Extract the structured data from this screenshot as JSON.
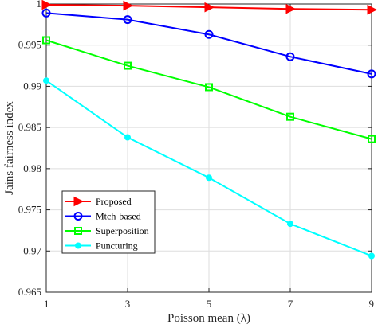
{
  "chart_data": {
    "type": "line",
    "xlabel": "Poisson mean (λ)",
    "ylabel": "Jains fairness index",
    "x": [
      1,
      3,
      5,
      7,
      9
    ],
    "x_ticks": [
      "1",
      "3",
      "5",
      "7",
      "9"
    ],
    "y_ticks": [
      "0.965",
      "0.97",
      "0.975",
      "0.98",
      "0.985",
      "0.99",
      "0.995",
      "1"
    ],
    "xlim": [
      1,
      9
    ],
    "ylim": [
      0.965,
      1.0
    ],
    "grid": true,
    "legend_position": "bottom-left",
    "series": [
      {
        "name": "Proposed",
        "values": [
          0.9999,
          0.9998,
          0.9996,
          0.9994,
          0.9993
        ],
        "color": "#ff0000",
        "marker": "triangle-right"
      },
      {
        "name": "Mtch-based",
        "values": [
          0.9989,
          0.9981,
          0.9963,
          0.9936,
          0.9915
        ],
        "color": "#0000ff",
        "marker": "circle"
      },
      {
        "name": "Superposition",
        "values": [
          0.9956,
          0.9925,
          0.9899,
          0.9863,
          0.9836
        ],
        "color": "#00ff00",
        "marker": "square"
      },
      {
        "name": "Puncturing",
        "values": [
          0.9907,
          0.9838,
          0.9789,
          0.9733,
          0.9694
        ],
        "color": "#00ffff",
        "marker": "circle-filled"
      }
    ]
  }
}
